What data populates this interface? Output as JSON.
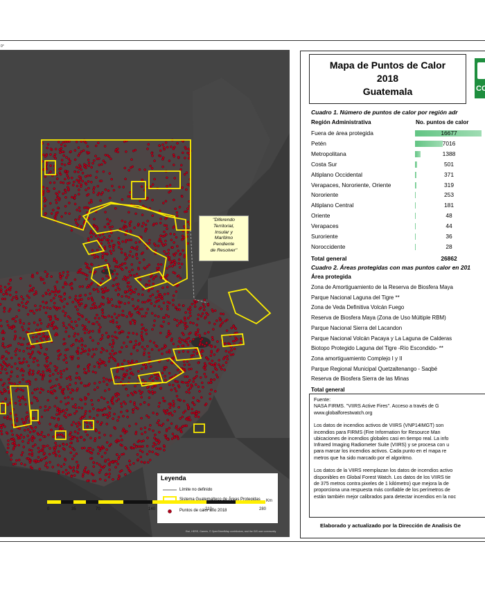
{
  "title": {
    "line1": "Mapa de Puntos de Calor",
    "line2": "2018",
    "line3": "Guatemala"
  },
  "logo": {
    "text": "CO"
  },
  "map": {
    "lon_label": "0°",
    "dispute_note": [
      "\"Diferendo",
      "Territorial,",
      "Insular y",
      "Marítimo",
      "Pendiente",
      "de Resolver\""
    ],
    "attribution": "Esri, HERE, Garmin, © OpenStreetMap contributors, and the GIS user community",
    "colors": {
      "background": "#3a3a3a",
      "land": "#454545",
      "hotspot": "#b3001b",
      "protected": "#ffef00"
    }
  },
  "legend": {
    "title": "Leyenda",
    "items": [
      {
        "label": "Límite no definido",
        "icon": "grey-line-icon"
      },
      {
        "label": "Sistema Guatemalteco de Áreas Protegidas",
        "icon": "yellow-outline-box-icon"
      },
      {
        "label": "Puntos de calor año 2018",
        "icon": "red-dot-icon"
      }
    ]
  },
  "scale_bar": {
    "unit": "Km",
    "ticks": [
      "0",
      "35",
      "70",
      "140",
      "210",
      "280"
    ]
  },
  "cuadro1": {
    "caption": "Cuadro 1. Número de puntos de calor por región adr",
    "col1": "Región Administrativa",
    "col2": "No. puntos de calor",
    "max_value": 16677,
    "rows": [
      {
        "region": "Fuera de área protegida",
        "value": 16677
      },
      {
        "region": "Petén",
        "value": 7016
      },
      {
        "region": "Metropolitana",
        "value": 1388
      },
      {
        "region": "Costa Sur",
        "value": 501
      },
      {
        "region": "Altiplano Occidental",
        "value": 371
      },
      {
        "region": "Verapaces, Nororiente, Oriente",
        "value": 319
      },
      {
        "region": "Nororiente",
        "value": 253
      },
      {
        "region": "Altiplano Central",
        "value": 181
      },
      {
        "region": "Oriente",
        "value": 48
      },
      {
        "region": "Verapaces",
        "value": 44
      },
      {
        "region": "Suroriente",
        "value": 36
      },
      {
        "region": "Noroccidente",
        "value": 28
      }
    ],
    "total_label": "Total general",
    "total_value": "26862"
  },
  "cuadro2": {
    "caption": "Cuadro 2. Áreas protegidas con mas puntos calor en 201",
    "col1": "Área protegida",
    "rows": [
      "Zona de Amortiguamiento de la Reserva de Biosfera Maya",
      "Parque Nacional Laguna del Tigre **",
      "Zona de Veda Definitiva Volcán Fuego",
      "Reserva de Biosfera Maya (Zona de Uso Múltiple RBM)",
      "Parque Nacional Sierra del Lacandon",
      "Parque Nacional Volcán Pacaya y La Laguna de Calderas",
      "Biotopo Protegido Laguna del Tigre -Río Escondido- **",
      "Zona amortiguamiento Complejo I y II",
      "Parque Regional Municipal Quetzaltenango - Saqbé",
      "Reserva de Biosfera Sierra de las Minas"
    ],
    "total_label": "Total general"
  },
  "fuente": {
    "lines": [
      "Fuente:",
      "NASA FIRMS. \"VIIRS Active Fires\". Acceso a través de G",
      "www.globalforestwatch.org",
      "",
      "Los datos de incendios activos de VIIRS (VNP14IMGT) son",
      "incendios para FIRMS (Fire Information for Resource Man",
      "ubicaciones de incendios globales casi en tiempo real. La info",
      "Infrared Imaging Radiometer Suite (VIIRS) y se procesa con u",
      "para marcar los incendios activos. Cada punto en el mapa re",
      "metros que ha sido marcado por el algoritmo.",
      "",
      "Los datos de la VIIRS reemplazan los datos de incendios activo",
      "disponibles en Global Forest Watch. Los datos de los VIIRS tie",
      "de 375 metros contra pixeles de 1 kilómetro) que mejora la de",
      "proporciona una respuesta más confiable de los perímetros de",
      "están también mejor calibrados para detectar incendios en la noc"
    ]
  },
  "footer": {
    "text": "Elaborado y actualizado por la Dirección de Analisis Ge"
  }
}
